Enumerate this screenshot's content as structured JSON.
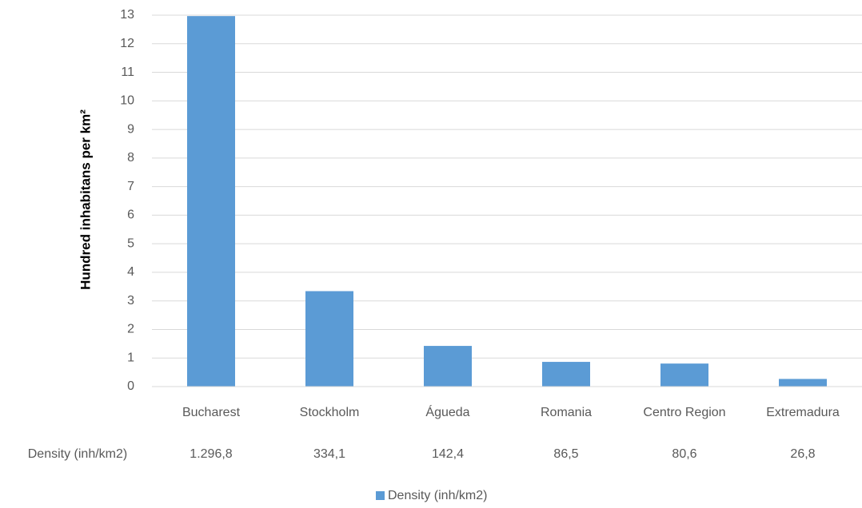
{
  "chart_data": {
    "type": "bar",
    "y_label": "Hundred inhabitans per km²",
    "categories": [
      "Bucharest",
      "Stockholm",
      "Águeda",
      "Romania",
      "Centro Region",
      "Extremadura"
    ],
    "series": [
      {
        "name": "Density (inh/km2)",
        "color": "#5b9bd5",
        "values": [
          12.968,
          3.341,
          1.424,
          0.865,
          0.806,
          0.268
        ],
        "value_labels": [
          "1.296,8",
          "334,1",
          "142,4",
          "86,5",
          "80,6",
          "26,8"
        ]
      }
    ],
    "ylim": [
      0,
      13
    ],
    "yticks": [
      0,
      1,
      2,
      3,
      4,
      5,
      6,
      7,
      8,
      9,
      10,
      11,
      12,
      13
    ],
    "grid": true,
    "legend": "bottom"
  }
}
